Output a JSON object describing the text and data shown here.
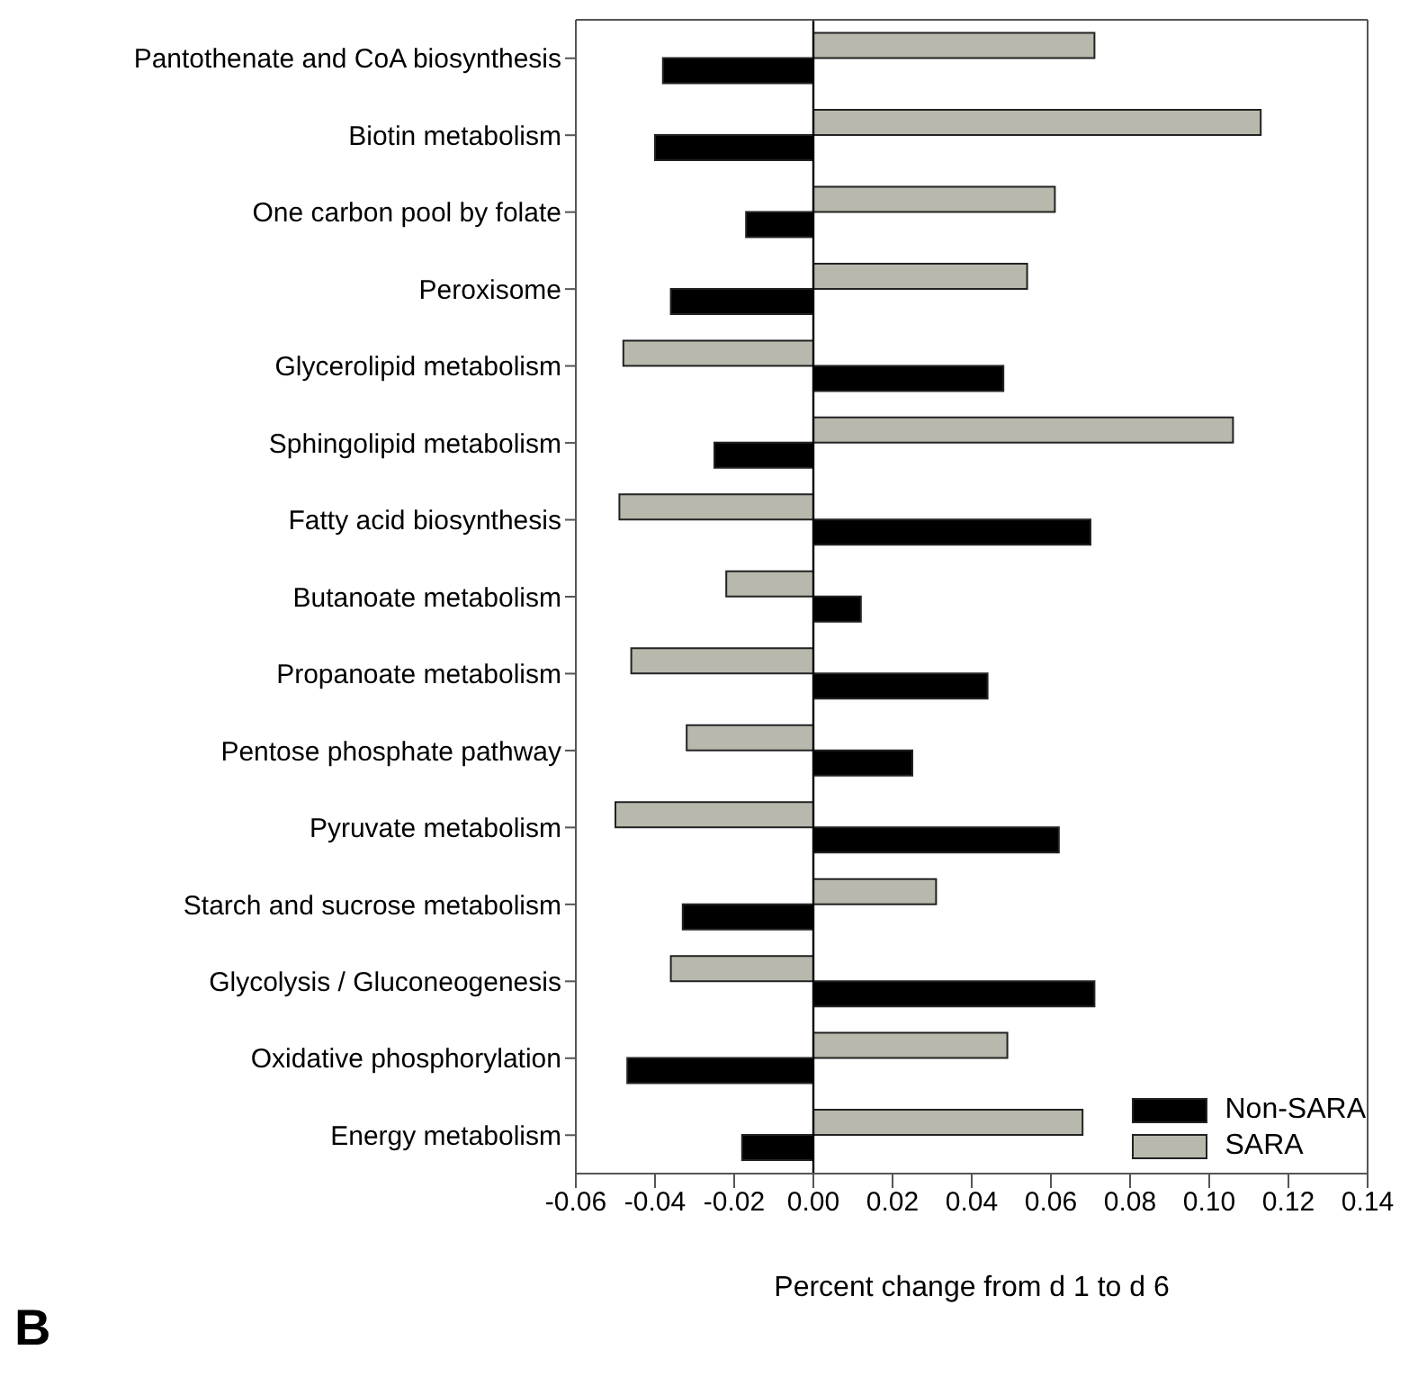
{
  "chart_data": {
    "type": "bar",
    "orientation": "horizontal",
    "xlabel": "Percent change from d 1 to d 6",
    "categories": [
      "Pantothenate and CoA biosynthesis",
      "Biotin metabolism",
      "One carbon pool by folate",
      "Peroxisome",
      "Glycerolipid metabolism",
      "Sphingolipid metabolism",
      "Fatty acid biosynthesis",
      "Butanoate metabolism",
      "Propanoate metabolism",
      "Pentose phosphate pathway",
      "Pyruvate metabolism",
      "Starch and sucrose metabolism",
      "Glycolysis / Gluconeogenesis",
      "Oxidative phosphorylation",
      "Energy metabolism"
    ],
    "series": [
      {
        "name": "Non-SARA",
        "color": "#000000",
        "values": [
          -0.038,
          -0.04,
          -0.017,
          -0.036,
          0.048,
          -0.025,
          0.07,
          0.012,
          0.044,
          0.025,
          0.062,
          -0.033,
          0.071,
          -0.047,
          -0.018
        ]
      },
      {
        "name": "SARA",
        "color": "#b8b8ac",
        "values": [
          0.071,
          0.113,
          0.061,
          0.054,
          -0.048,
          0.106,
          -0.049,
          -0.022,
          -0.046,
          -0.032,
          -0.05,
          0.031,
          -0.036,
          0.049,
          0.068
        ]
      }
    ],
    "xlim": [
      -0.06,
      0.14
    ],
    "xticks": [
      {
        "value": -0.06,
        "label": "-0.06"
      },
      {
        "value": -0.04,
        "label": "-0.04"
      },
      {
        "value": -0.02,
        "label": "-0.02"
      },
      {
        "value": 0,
        "label": "0.00"
      },
      {
        "value": 0.02,
        "label": "0.02"
      },
      {
        "value": 0.04,
        "label": "0.04"
      },
      {
        "value": 0.06,
        "label": "0.06"
      },
      {
        "value": 0.08,
        "label": "0.08"
      },
      {
        "value": 0.1,
        "label": "0.10"
      },
      {
        "value": 0.12,
        "label": "0.12"
      },
      {
        "value": 0.14,
        "label": "0.14"
      }
    ],
    "ref_lines": [
      {
        "axis": "x",
        "value": 0,
        "color": "#000000"
      }
    ],
    "legend": "bottom right",
    "grid": false,
    "annotations": [
      "B"
    ]
  }
}
